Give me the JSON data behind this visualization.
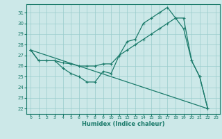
{
  "xlabel": "Humidex (Indice chaleur)",
  "bg_color": "#cce8e8",
  "grid_color": "#99cccc",
  "line_color": "#1a7a6a",
  "xlim": [
    -0.5,
    23.5
  ],
  "ylim": [
    21.5,
    31.8
  ],
  "xticks": [
    0,
    1,
    2,
    3,
    4,
    5,
    6,
    7,
    8,
    9,
    10,
    11,
    12,
    13,
    14,
    15,
    16,
    17,
    18,
    19,
    20,
    21,
    22,
    23
  ],
  "yticks": [
    22,
    23,
    24,
    25,
    26,
    27,
    28,
    29,
    30,
    31
  ],
  "line1_x": [
    0,
    1,
    2,
    3,
    4,
    5,
    6,
    7,
    8,
    9,
    10,
    11,
    12,
    13,
    14,
    15,
    16,
    17,
    18,
    19,
    20,
    21,
    22
  ],
  "line1_y": [
    27.5,
    26.5,
    26.5,
    26.5,
    25.8,
    25.3,
    25.0,
    24.5,
    24.5,
    25.5,
    25.3,
    27.0,
    28.3,
    28.5,
    30.0,
    30.5,
    31.0,
    31.5,
    30.5,
    29.5,
    26.5,
    25.0,
    22.0
  ],
  "line2_x": [
    0,
    1,
    2,
    3,
    4,
    5,
    6,
    7,
    8,
    9,
    10,
    11,
    12,
    13,
    14,
    15,
    16,
    17,
    18,
    19,
    20,
    21,
    22
  ],
  "line2_y": [
    27.5,
    26.5,
    26.5,
    26.5,
    26.3,
    26.2,
    26.0,
    26.0,
    26.0,
    26.2,
    26.2,
    27.0,
    27.5,
    28.0,
    28.5,
    29.0,
    29.5,
    30.0,
    30.5,
    30.5,
    26.5,
    25.0,
    22.0
  ],
  "line3_x": [
    0,
    22
  ],
  "line3_y": [
    27.5,
    22.0
  ]
}
